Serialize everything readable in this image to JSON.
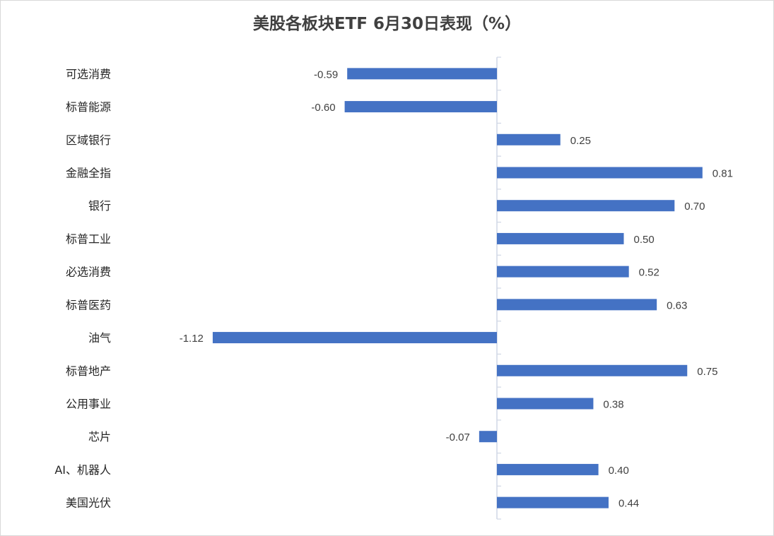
{
  "chart_data": {
    "type": "bar",
    "orientation": "horizontal",
    "title": "美股各板块ETF  6月30日表现（%）",
    "categories": [
      "可选消费",
      "标普能源",
      "区域银行",
      "金融全指",
      "银行",
      "标普工业",
      "必选消费",
      "标普医药",
      "油气",
      "标普地产",
      "公用事业",
      "芯片",
      "AI、机器人",
      "美国光伏"
    ],
    "values": [
      -0.59,
      -0.6,
      0.25,
      0.81,
      0.7,
      0.5,
      0.52,
      0.63,
      -1.12,
      0.75,
      0.38,
      -0.07,
      0.4,
      0.44
    ],
    "value_labels": [
      "-0.59",
      "-0.60",
      "0.25",
      "0.81",
      "0.70",
      "0.50",
      "0.52",
      "0.63",
      "-1.12",
      "0.75",
      "0.38",
      "-0.07",
      "0.40",
      "0.44"
    ],
    "xlim": [
      -1.2,
      0.85
    ],
    "grid": false,
    "legend": "none",
    "bar_color": "#4472C4",
    "axis_color": "#D0D7E5"
  }
}
